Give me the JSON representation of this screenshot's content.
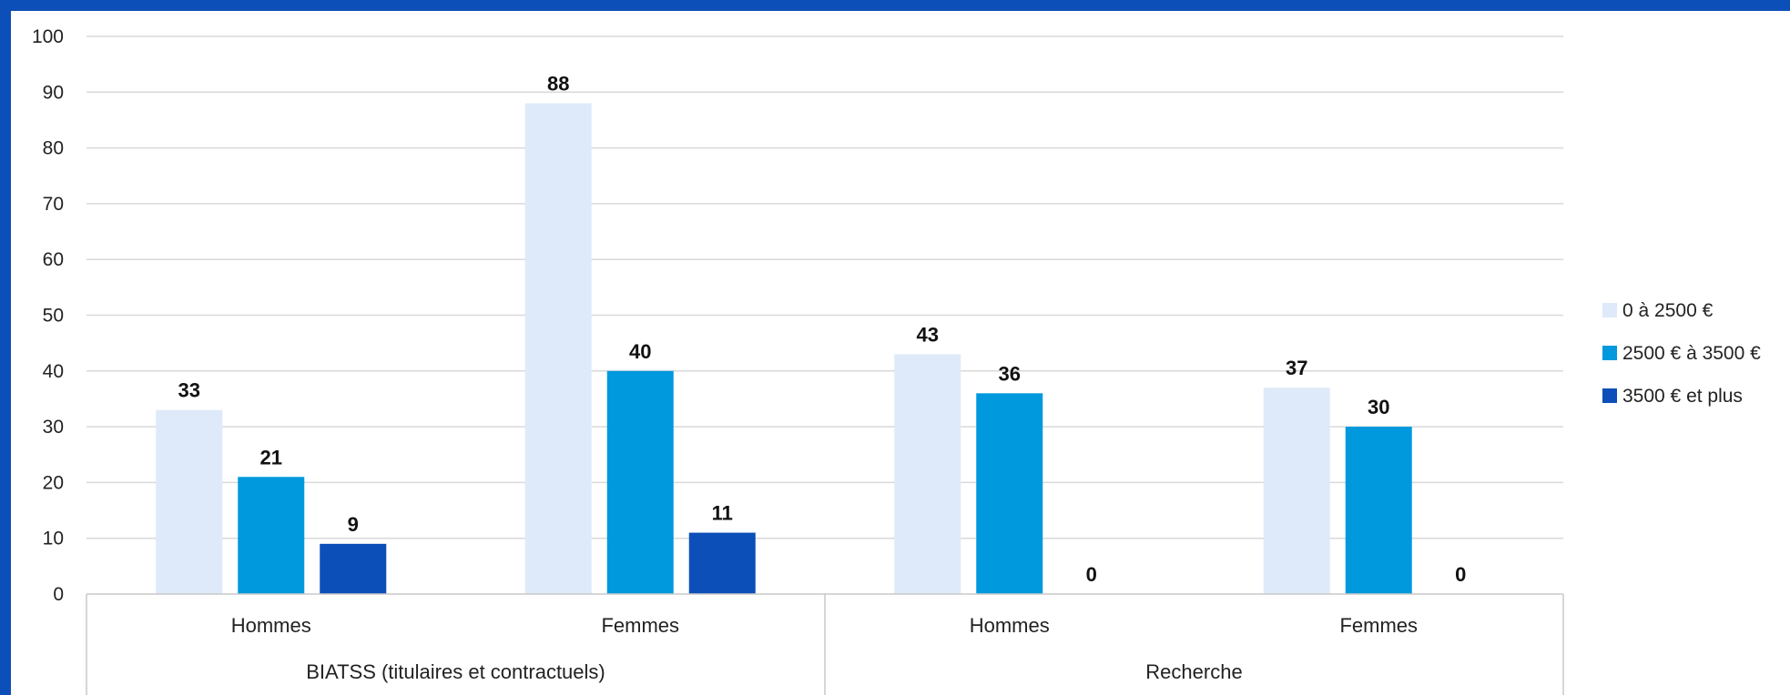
{
  "chart_data": {
    "type": "bar",
    "title": "",
    "xlabel": "",
    "ylabel": "",
    "ylim": [
      0,
      100
    ],
    "yticks": [
      0,
      10,
      20,
      30,
      40,
      50,
      60,
      70,
      80,
      90,
      100
    ],
    "grid": true,
    "legend_position": "right",
    "groups": [
      {
        "label": "BIATSS (titulaires et contractuels)",
        "categories": [
          "Hommes",
          "Femmes"
        ]
      },
      {
        "label": "Recherche",
        "categories": [
          "Hommes",
          "Femmes"
        ]
      }
    ],
    "series": [
      {
        "name": "0 à 2500 €",
        "color": "#deeaf9",
        "values": [
          33,
          88,
          43,
          37
        ]
      },
      {
        "name": "2500 € à 3500 €",
        "color": "#0099dd",
        "values": [
          21,
          40,
          36,
          30
        ]
      },
      {
        "name": "3500 € et plus",
        "color": "#0d4fb8",
        "values": [
          9,
          11,
          0,
          0
        ]
      }
    ]
  },
  "colors": {
    "frame": "#0d4fb8",
    "grid": "#d9d9d9",
    "axis": "#c8c8c8"
  }
}
